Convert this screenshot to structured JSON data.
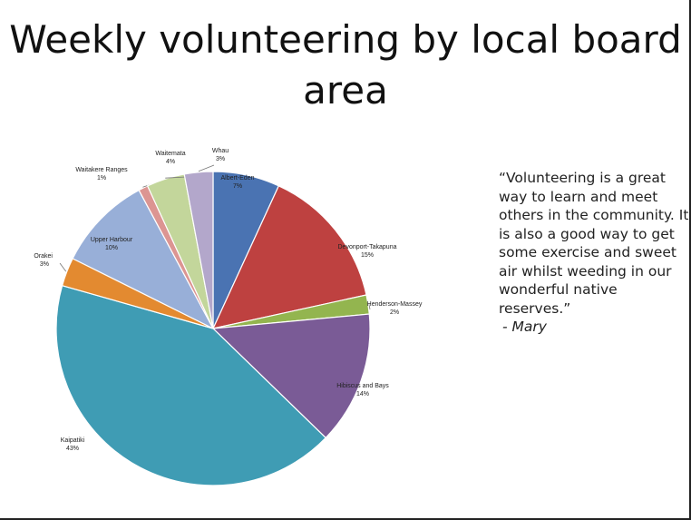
{
  "title_line1": "Weekly volunteering by local board",
  "title_line2": "area",
  "quote": {
    "text": "“Volunteering is a great way to learn and meet others in the community. It is also a good way to get some exercise and sweet air whilst weeding in our wonderful native reserves.”",
    "attribution": "- Mary"
  },
  "chart_data": {
    "type": "pie",
    "title": "Weekly volunteering by local board area",
    "slices": [
      {
        "label": "Albert-Eden",
        "value_label": "7%",
        "value": 7,
        "color": "#4a73b2"
      },
      {
        "label": "Devonport-Takapuna",
        "value_label": "15%",
        "value": 15,
        "color": "#be4140"
      },
      {
        "label": "Henderson-Massey",
        "value_label": "2%",
        "value": 2,
        "color": "#93b54f"
      },
      {
        "label": "Hibiscus and Bays",
        "value_label": "14%",
        "value": 14,
        "color": "#7a5b96"
      },
      {
        "label": "Kaipatiki",
        "value_label": "43%",
        "value": 43,
        "color": "#3f9cb4"
      },
      {
        "label": "Orakei",
        "value_label": "3%",
        "value": 3,
        "color": "#e38a30"
      },
      {
        "label": "Upper Harbour",
        "value_label": "10%",
        "value": 10,
        "color": "#98afd8"
      },
      {
        "label": "Waitakere Ranges",
        "value_label": "1%",
        "value": 1,
        "color": "#dc9592"
      },
      {
        "label": "Waitemata",
        "value_label": "4%",
        "value": 4,
        "color": "#c3d69b"
      },
      {
        "label": "Whau",
        "value_label": "3%",
        "value": 3,
        "color": "#b3a7cb"
      }
    ]
  }
}
